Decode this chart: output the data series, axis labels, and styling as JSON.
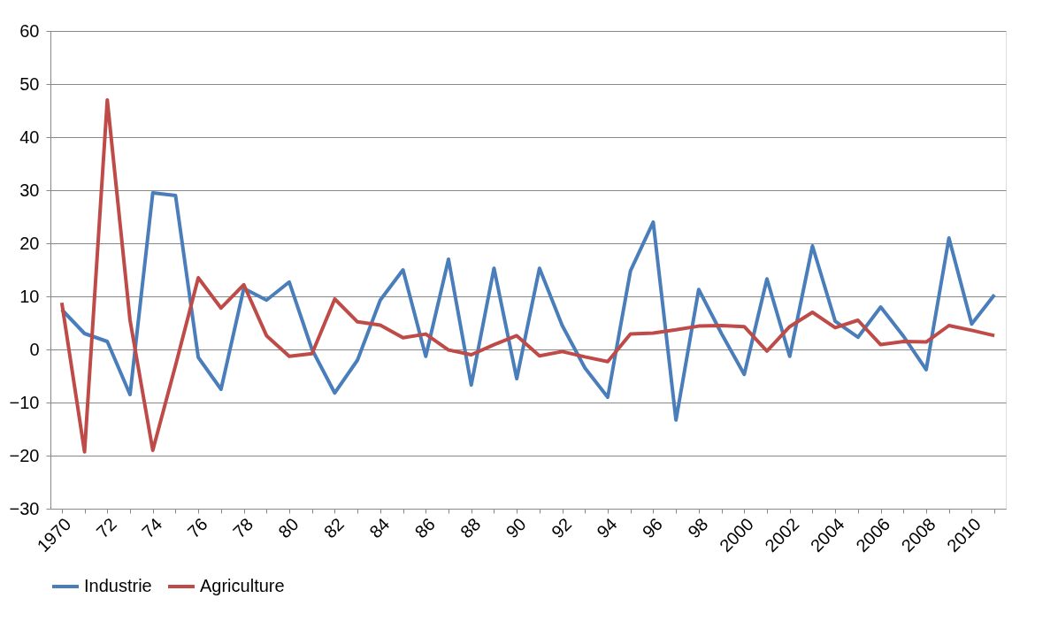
{
  "chart_data": {
    "type": "line",
    "categories": [
      "1970",
      null,
      "72",
      null,
      "74",
      null,
      "76",
      null,
      "78",
      null,
      "80",
      null,
      "82",
      null,
      "84",
      null,
      "86",
      null,
      "88",
      null,
      "90",
      null,
      "92",
      null,
      "94",
      null,
      "96",
      null,
      "98",
      null,
      "2000",
      null,
      "2002",
      null,
      "2004",
      null,
      "2006",
      null,
      "2008",
      null,
      "2010",
      null
    ],
    "series": [
      {
        "name": "Industrie",
        "color": "#4a7ebb",
        "values": [
          7.5,
          3,
          1.5,
          -8.5,
          29.5,
          29,
          -1.5,
          -7.5,
          11.5,
          9.3,
          12.7,
          0,
          -8.2,
          -2,
          9.3,
          15,
          -1.3,
          17,
          -6.7,
          15.3,
          -5.5,
          15.3,
          4.5,
          -3.5,
          -9,
          14.8,
          24,
          -13.3,
          11.3,
          3,
          -4.7,
          13.3,
          -1.3,
          19.5,
          5.3,
          2.3,
          8,
          2.5,
          -3.8,
          21,
          4.8,
          10.3
        ]
      },
      {
        "name": "Agriculture",
        "color": "#be4b48",
        "values": [
          8.8,
          -19.3,
          47,
          5.5,
          -19,
          -3,
          13.5,
          7.8,
          12.2,
          2.6,
          -1.3,
          -0.8,
          9.5,
          5.2,
          4.6,
          2.2,
          2.9,
          -0.1,
          -1,
          0.9,
          2.6,
          -1.2,
          -0.4,
          -1.4,
          -2.3,
          2.9,
          3.1,
          3.7,
          4.4,
          4.5,
          4.3,
          -0.3,
          4.3,
          7,
          4.1,
          5.5,
          0.9,
          1.5,
          1.4,
          4.5,
          3.6,
          2.6
        ]
      }
    ],
    "ylim": [
      -30,
      60
    ],
    "yticks": [
      -30,
      -20,
      -10,
      0,
      10,
      20,
      30,
      40,
      50,
      60
    ],
    "grid": "y",
    "legend": "bottom",
    "marker": "none",
    "line_style": "solid"
  }
}
